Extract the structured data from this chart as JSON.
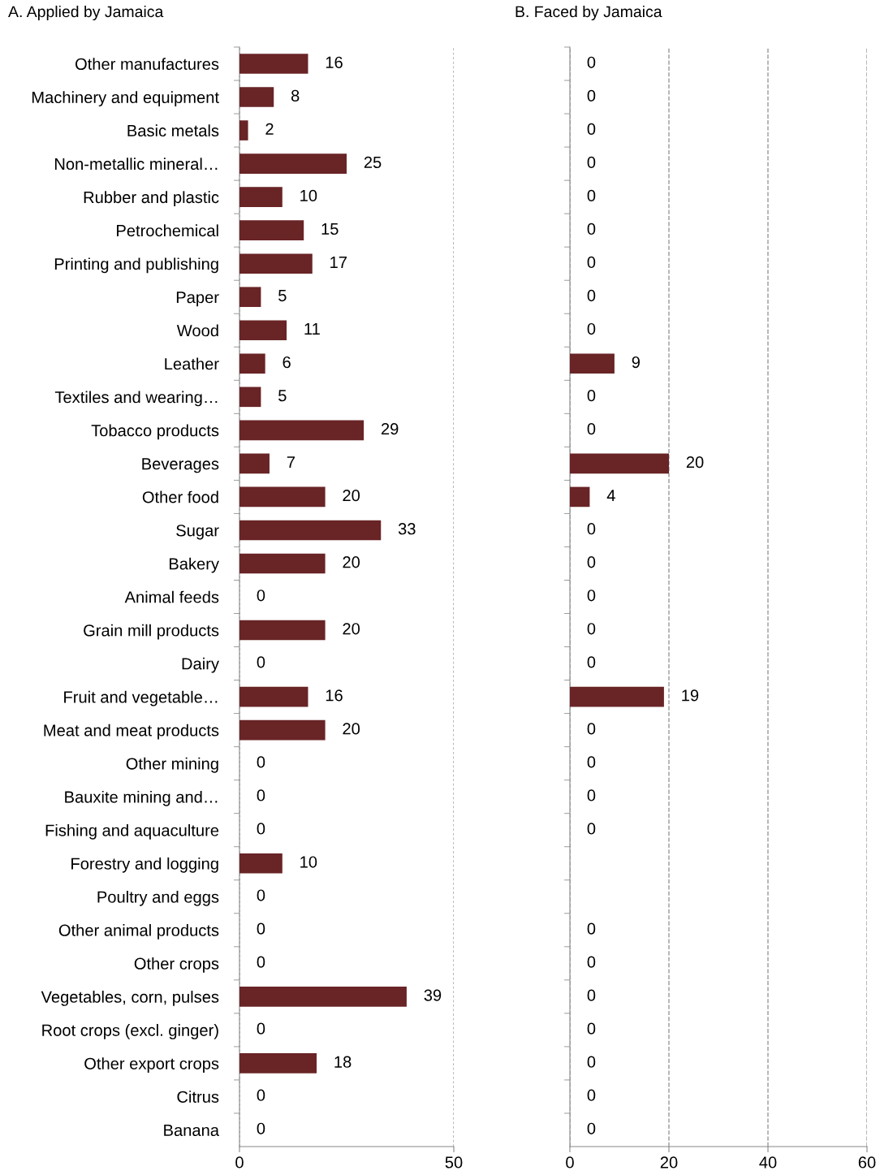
{
  "chart_data": [
    {
      "type": "bar",
      "orientation": "horizontal",
      "title": "A. Applied by Jamaica",
      "categories": [
        "Other manufactures",
        "Machinery and equipment",
        "Basic metals",
        "Non-metallic mineral…",
        "Rubber and plastic",
        "Petrochemical",
        "Printing and publishing",
        "Paper",
        "Wood",
        "Leather",
        "Textiles and wearing…",
        "Tobacco products",
        "Beverages",
        "Other food",
        "Sugar",
        "Bakery",
        "Animal feeds",
        "Grain mill products",
        "Dairy",
        "Fruit and vegetable…",
        "Meat and meat products",
        "Other mining",
        "Bauxite mining and…",
        "Fishing and aquaculture",
        "Forestry and logging",
        "Poultry and eggs",
        "Other animal products",
        "Other crops",
        "Vegetables, corn, pulses",
        "Root crops (excl. ginger)",
        "Other export crops",
        "Citrus",
        "Banana"
      ],
      "values": [
        16,
        8,
        2,
        25,
        10,
        15,
        17,
        5,
        11,
        6,
        5,
        29,
        7,
        20,
        33,
        20,
        0,
        20,
        0,
        16,
        20,
        0,
        0,
        0,
        10,
        0,
        0,
        0,
        39,
        0,
        18,
        0,
        0
      ],
      "color": "#692426",
      "xlim": [
        0,
        50
      ],
      "xticks": [
        0,
        50
      ],
      "grid": "x",
      "data_labels": true
    },
    {
      "type": "bar",
      "orientation": "horizontal",
      "title": "B. Faced by Jamaica",
      "categories": [
        null,
        null,
        null,
        null,
        null,
        null,
        null,
        null,
        null,
        null,
        null,
        null,
        null,
        null,
        null,
        null,
        null,
        null,
        null,
        null,
        null,
        null,
        null,
        null,
        null,
        null,
        null,
        null,
        null,
        null,
        null,
        null,
        null
      ],
      "values": [
        0,
        0,
        0,
        0,
        0,
        0,
        0,
        0,
        0,
        9,
        0,
        0,
        20,
        4,
        0,
        0,
        0,
        0,
        0,
        19,
        0,
        0,
        0,
        0,
        null,
        null,
        0,
        0,
        0,
        0,
        0,
        0,
        0
      ],
      "color": "#692426",
      "xlim": [
        0,
        60
      ],
      "xticks": [
        0,
        20,
        40,
        60
      ],
      "grid": "x",
      "data_labels": true
    }
  ]
}
